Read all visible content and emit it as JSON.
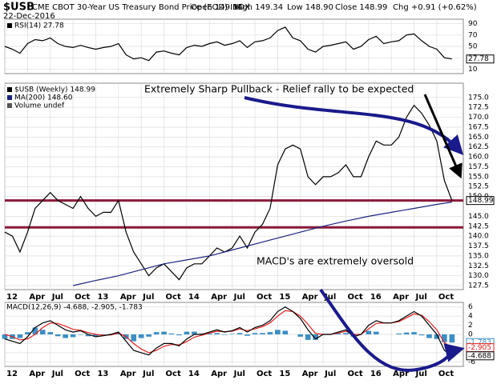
{
  "header": {
    "symbol": "$USB",
    "name": "CME CBOT 30-Year US Treasury Bond Price (EOD) INDX",
    "date": "22-Dec-2016",
    "quote": [
      "Open 149.34",
      "High 149.34",
      "Low 148.90",
      "Close 148.99",
      "Chg +0.91 (+0.62%)"
    ]
  },
  "chart_data": [
    {
      "type": "line",
      "panel": "rsi",
      "x": [
        0,
        1,
        2,
        3,
        4,
        5,
        6,
        7,
        8,
        9,
        10,
        11,
        12,
        13,
        14,
        15,
        16,
        17,
        18,
        19,
        20,
        21,
        22,
        23,
        24,
        25,
        26,
        27,
        28,
        29,
        30,
        31,
        32,
        33,
        34,
        35,
        36,
        37,
        38,
        39,
        40,
        41,
        42,
        43,
        44,
        45,
        46,
        47,
        48,
        49,
        50,
        51,
        52,
        53,
        54,
        55,
        56,
        57,
        58,
        59
      ],
      "xlim": [
        0,
        60.5
      ],
      "ylim": [
        2,
        98
      ],
      "yticks": [
        10,
        30,
        50,
        70,
        90
      ],
      "grid": true,
      "series": [
        {
          "name": "RSI(14) 27.78",
          "color": "#000000",
          "last_box": true,
          "values": [
            50,
            45,
            38,
            55,
            62,
            60,
            65,
            55,
            50,
            48,
            52,
            48,
            45,
            48,
            50,
            55,
            35,
            28,
            30,
            25,
            40,
            42,
            38,
            35,
            48,
            52,
            50,
            55,
            58,
            52,
            55,
            60,
            48,
            58,
            60,
            65,
            78,
            84,
            65,
            60,
            45,
            40,
            50,
            52,
            55,
            58,
            45,
            50,
            62,
            68,
            55,
            58,
            60,
            70,
            72,
            60,
            50,
            45,
            30,
            27.78
          ]
        }
      ]
    },
    {
      "type": "line",
      "panel": "price",
      "x": [
        0,
        1,
        2,
        3,
        4,
        5,
        6,
        7,
        8,
        9,
        10,
        11,
        12,
        13,
        14,
        15,
        16,
        17,
        18,
        19,
        20,
        21,
        22,
        23,
        24,
        25,
        26,
        27,
        28,
        29,
        30,
        31,
        32,
        33,
        34,
        35,
        36,
        37,
        38,
        39,
        40,
        41,
        42,
        43,
        44,
        45,
        46,
        47,
        48,
        49,
        50,
        51,
        52,
        53,
        54,
        55,
        56,
        57,
        58,
        59
      ],
      "xlim": [
        0,
        60.5
      ],
      "ylim": [
        126.5,
        178.6
      ],
      "grid": true,
      "xticks": [
        {
          "value": 0,
          "label": "12"
        },
        {
          "value": 3,
          "label": "Apr"
        },
        {
          "value": 6,
          "label": "Jul"
        },
        {
          "value": 9,
          "label": "Oct"
        },
        {
          "value": 12,
          "label": "13"
        },
        {
          "value": 15,
          "label": "Apr"
        },
        {
          "value": 18,
          "label": "Jul"
        },
        {
          "value": 21,
          "label": "Oct"
        },
        {
          "value": 24,
          "label": "14"
        },
        {
          "value": 27,
          "label": "Apr"
        },
        {
          "value": 30,
          "label": "Jul"
        },
        {
          "value": 33,
          "label": "Oct"
        },
        {
          "value": 36,
          "label": "15"
        },
        {
          "value": 39,
          "label": "Apr"
        },
        {
          "value": 42,
          "label": "Jul"
        },
        {
          "value": 45,
          "label": "Oct"
        },
        {
          "value": 48,
          "label": "16"
        },
        {
          "value": 51,
          "label": "Apr"
        },
        {
          "value": 54,
          "label": "Jul"
        },
        {
          "value": 57,
          "label": "Oct"
        }
      ],
      "yticks": [
        {
          "value": 127.5,
          "label": "127.5"
        },
        {
          "value": 130,
          "label": "130.0"
        },
        {
          "value": 132.5,
          "label": "132.5"
        },
        {
          "value": 135,
          "label": "135.0"
        },
        {
          "value": 137.5,
          "label": "137.5"
        },
        {
          "value": 140,
          "label": "140.0"
        },
        {
          "value": 142.5,
          "label": "142.5"
        },
        {
          "value": 145,
          "label": "145.0"
        },
        {
          "value": 150,
          "label": "150.0"
        },
        {
          "value": 152.5,
          "label": "152.5"
        },
        {
          "value": 155,
          "label": "155.0"
        },
        {
          "value": 157.5,
          "label": "157.5"
        },
        {
          "value": 160,
          "label": "160.0"
        },
        {
          "value": 162.5,
          "label": "162.5"
        },
        {
          "value": 165,
          "label": "165.0"
        },
        {
          "value": 167.5,
          "label": "167.5"
        },
        {
          "value": 170,
          "label": "170.0"
        },
        {
          "value": 172.5,
          "label": "172.5"
        },
        {
          "value": 175,
          "label": "175.0"
        }
      ],
      "hlines": [
        149.0,
        142.2
      ],
      "hline_color": "#8b1a3a",
      "annotations": [
        "Extremely Sharp Pullback - Relief rally to be expected",
        "MACD's are extremely oversold"
      ],
      "series": [
        {
          "name": "$USB (Weekly) 148.99",
          "color": "#000000",
          "last_box": true,
          "values": [
            141,
            140,
            136,
            141,
            147,
            149,
            151,
            149,
            148,
            147,
            150,
            147,
            145,
            146,
            146,
            149,
            141,
            136,
            133,
            130,
            132,
            133,
            131,
            129,
            132,
            133,
            133,
            135,
            137,
            136,
            137,
            140,
            137,
            141,
            143,
            147,
            158,
            162,
            163,
            162,
            155,
            153,
            155,
            155,
            156,
            158,
            155,
            155,
            160,
            164,
            163,
            163,
            165,
            170,
            173,
            171,
            168,
            164,
            154,
            148.99
          ]
        },
        {
          "name": "MA(200) 148.60",
          "color": "#1a237e",
          "x": [
            9,
            12,
            15,
            18,
            21,
            24,
            27,
            30,
            33,
            36,
            39,
            42,
            45,
            48,
            51,
            54,
            57,
            59
          ],
          "values": [
            127.5,
            128.8,
            130,
            131.5,
            133,
            134,
            135,
            136.5,
            138,
            139.5,
            141,
            142.5,
            143.8,
            145,
            146,
            147,
            148,
            148.6
          ]
        },
        {
          "name": "Volume undef",
          "color": "#555555",
          "legend_only": true
        }
      ]
    },
    {
      "type": "line",
      "panel": "macd",
      "x": [
        0,
        1,
        2,
        3,
        4,
        5,
        6,
        7,
        8,
        9,
        10,
        11,
        12,
        13,
        14,
        15,
        16,
        17,
        18,
        19,
        20,
        21,
        22,
        23,
        24,
        25,
        26,
        27,
        28,
        29,
        30,
        31,
        32,
        33,
        34,
        35,
        36,
        37,
        38,
        39,
        40,
        41,
        42,
        43,
        44,
        45,
        46,
        47,
        48,
        49,
        50,
        51,
        52,
        53,
        54,
        55,
        56,
        57,
        58,
        59
      ],
      "xlim": [
        0,
        60.5
      ],
      "ylim": [
        -7,
        7
      ],
      "yticks": [
        -6,
        -4,
        -2,
        0,
        2,
        4,
        6
      ],
      "grid": true,
      "xticks": [
        {
          "value": 0,
          "label": "12"
        },
        {
          "value": 3,
          "label": "Apr"
        },
        {
          "value": 6,
          "label": "Jul"
        },
        {
          "value": 9,
          "label": "Oct"
        },
        {
          "value": 12,
          "label": "13"
        },
        {
          "value": 15,
          "label": "Apr"
        },
        {
          "value": 18,
          "label": "Jul"
        },
        {
          "value": 21,
          "label": "Oct"
        },
        {
          "value": 24,
          "label": "14"
        },
        {
          "value": 27,
          "label": "Apr"
        },
        {
          "value": 30,
          "label": "Jul"
        },
        {
          "value": 33,
          "label": "Oct"
        },
        {
          "value": 36,
          "label": "15"
        },
        {
          "value": 39,
          "label": "Apr"
        },
        {
          "value": 42,
          "label": "Jul"
        },
        {
          "value": 45,
          "label": "Oct"
        },
        {
          "value": 48,
          "label": "16"
        },
        {
          "value": 51,
          "label": "Apr"
        },
        {
          "value": 54,
          "label": "Jul"
        },
        {
          "value": 57,
          "label": "Oct"
        }
      ],
      "title": "MACD(12,26,9) -4.688, -2.905, -1.783",
      "series": [
        {
          "type": "bar",
          "color": "#3b8fc4",
          "last_box": true,
          "values": [
            -1,
            -1,
            -0.8,
            0.5,
            1.5,
            1,
            0.5,
            -0.4,
            -0.8,
            -0.6,
            -0.1,
            -0.4,
            -0.5,
            -0.1,
            0.1,
            0.2,
            -1,
            -1.5,
            -0.8,
            -0.5,
            0.5,
            0.6,
            0.2,
            -0.2,
            0.6,
            0.6,
            0.2,
            0.2,
            0.3,
            -0.1,
            0.1,
            0.3,
            -0.3,
            0.3,
            0.3,
            0.5,
            1,
            0.8,
            0,
            -0.5,
            -1.2,
            -1.2,
            0,
            0,
            0.2,
            0.3,
            -0.5,
            0,
            0.8,
            0.6,
            0,
            0,
            0.2,
            0.4,
            0.5,
            -0.2,
            -0.8,
            -1,
            -1.7,
            -1.783
          ]
        },
        {
          "color": "#e02020",
          "last_box": true,
          "values": [
            0,
            -0.5,
            -1.2,
            -1,
            0,
            1.5,
            2.5,
            2.4,
            1.8,
            1.1,
            0.9,
            0.4,
            0,
            -0.2,
            -0.1,
            0.3,
            -0.5,
            -2,
            -3.2,
            -4,
            -3.5,
            -2.6,
            -2.2,
            -2.3,
            -1.6,
            -0.6,
            -0.2,
            0.3,
            0.7,
            0.6,
            0.7,
            1.2,
            0.8,
            1.2,
            1.7,
            2.5,
            4,
            5.2,
            5,
            4,
            2.2,
            0.2,
            0,
            0,
            0.3,
            0.7,
            0,
            0,
            1.2,
            2.4,
            2.5,
            2.5,
            2.8,
            3.6,
            4.5,
            4.2,
            2.8,
            1,
            -1.8,
            -2.905
          ]
        },
        {
          "color": "#000000",
          "last_box": true,
          "values": [
            -1,
            -1.5,
            -2,
            -0.5,
            1.5,
            2.5,
            3,
            2,
            1,
            0.5,
            0.8,
            0,
            -0.5,
            -0.3,
            0,
            0.5,
            -1.5,
            -3.5,
            -4,
            -4.5,
            -3,
            -2,
            -2,
            -2.5,
            -1,
            0,
            0,
            0.5,
            1,
            0.5,
            0.8,
            1.5,
            0.5,
            1.5,
            2,
            3,
            5,
            6,
            5,
            3.5,
            1,
            -1,
            0,
            0,
            0.5,
            1,
            -0.5,
            0,
            2,
            3,
            2.5,
            2.5,
            3,
            4,
            5,
            4,
            2,
            0,
            -3.5,
            -4.688
          ]
        }
      ]
    }
  ]
}
